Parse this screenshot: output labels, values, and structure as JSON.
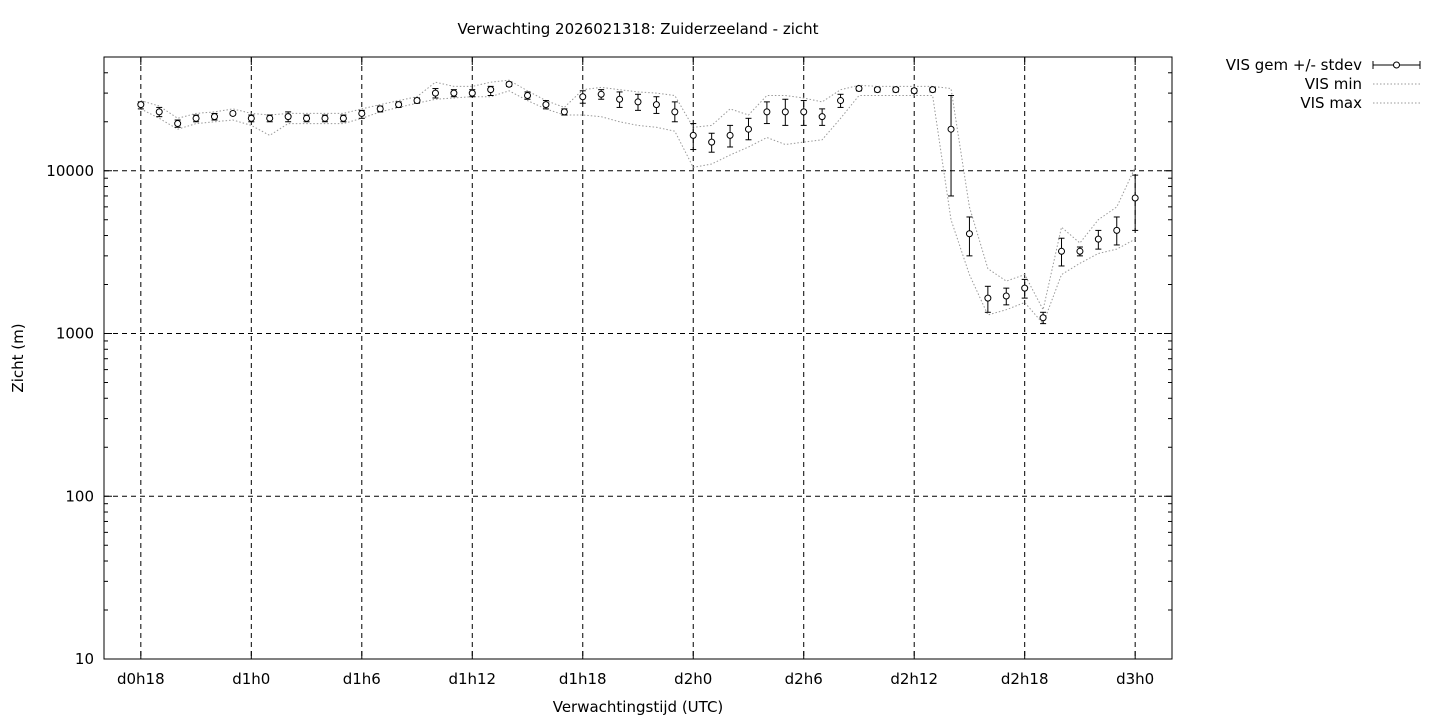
{
  "chart_data": {
    "type": "scatter",
    "title": "Verwachting 2026021318: Zuiderzeeland - zicht",
    "xlabel": "Verwachtingstijd (UTC)",
    "ylabel": "Zicht (m)",
    "y_scale": "log",
    "ylim": [
      10,
      50000
    ],
    "x_unit": "hours since d0h18",
    "xlim": [
      -2,
      56
    ],
    "x_ticks": [
      {
        "x": 0,
        "label": "d0h18"
      },
      {
        "x": 6,
        "label": "d1h0"
      },
      {
        "x": 12,
        "label": "d1h6"
      },
      {
        "x": 18,
        "label": "d1h12"
      },
      {
        "x": 24,
        "label": "d1h18"
      },
      {
        "x": 30,
        "label": "d2h0"
      },
      {
        "x": 36,
        "label": "d2h6"
      },
      {
        "x": 42,
        "label": "d2h12"
      },
      {
        "x": 48,
        "label": "d2h18"
      },
      {
        "x": 54,
        "label": "d3h0"
      }
    ],
    "y_ticks": [
      {
        "y": 10,
        "label": "10"
      },
      {
        "y": 100,
        "label": "100"
      },
      {
        "y": 1000,
        "label": "1000"
      },
      {
        "y": 10000,
        "label": "10000"
      }
    ],
    "grid": true,
    "legend_position": "outside-top-right",
    "series": [
      {
        "name": "VIS gem +/- stdev",
        "style": "points-errorbars",
        "x": [
          0,
          1,
          2,
          3,
          4,
          5,
          6,
          7,
          8,
          9,
          10,
          11,
          12,
          13,
          14,
          15,
          16,
          17,
          18,
          19,
          20,
          21,
          22,
          23,
          24,
          25,
          26,
          27,
          28,
          29,
          30,
          31,
          32,
          33,
          34,
          35,
          36,
          37,
          38,
          39,
          40,
          41,
          42,
          43,
          44,
          45,
          46,
          47,
          48,
          49,
          50,
          51,
          52,
          53,
          54
        ],
        "mean": [
          25500,
          23000,
          19500,
          21000,
          21500,
          22500,
          21000,
          21000,
          21500,
          21000,
          21000,
          21000,
          22500,
          24000,
          25500,
          27000,
          30000,
          30000,
          30000,
          31500,
          34000,
          29000,
          25500,
          23000,
          28500,
          29500,
          27500,
          26500,
          25500,
          23000,
          16500,
          15000,
          16500,
          18000,
          23000,
          23000,
          23000,
          21500,
          27000,
          32000,
          31500,
          31500,
          31000,
          31500,
          18000,
          4100,
          1650,
          1700,
          1900,
          1250,
          3200,
          3200,
          3800,
          4300,
          6800
        ],
        "low": [
          24000,
          21500,
          18500,
          20000,
          20500,
          22000,
          20000,
          20000,
          20000,
          20000,
          20000,
          20000,
          21000,
          23000,
          24500,
          26000,
          28000,
          28500,
          28500,
          29000,
          33000,
          27500,
          24000,
          22000,
          26000,
          27500,
          24500,
          23500,
          22500,
          20000,
          13500,
          13000,
          14000,
          15500,
          19500,
          19000,
          19000,
          19000,
          24500,
          31000,
          30500,
          30500,
          30000,
          30500,
          7000,
          3000,
          1350,
          1500,
          1650,
          1150,
          2600,
          3000,
          3300,
          3500,
          4300
        ],
        "high": [
          26500,
          24500,
          20500,
          22000,
          22500,
          23000,
          22000,
          22000,
          23000,
          22000,
          22000,
          22000,
          23500,
          25000,
          26500,
          28000,
          32000,
          31500,
          31500,
          33000,
          35000,
          30500,
          27000,
          24000,
          31000,
          31500,
          30500,
          29500,
          28500,
          26500,
          19500,
          17000,
          19000,
          21000,
          26500,
          27500,
          27000,
          24000,
          29500,
          33000,
          32500,
          32500,
          32000,
          32500,
          29000,
          5200,
          1950,
          1900,
          2150,
          1350,
          3850,
          3400,
          4300,
          5200,
          9400
        ]
      },
      {
        "name": "VIS min",
        "style": "dotted-line",
        "x": [
          0,
          1,
          2,
          3,
          4,
          5,
          6,
          7,
          8,
          9,
          10,
          11,
          12,
          13,
          14,
          15,
          16,
          17,
          18,
          19,
          20,
          21,
          22,
          23,
          24,
          25,
          26,
          27,
          28,
          29,
          30,
          31,
          32,
          33,
          34,
          35,
          36,
          37,
          38,
          39,
          40,
          41,
          42,
          43,
          44,
          45,
          46,
          47,
          48,
          49,
          50,
          51,
          52,
          53,
          54
        ],
        "values": [
          24000,
          21000,
          18000,
          19500,
          20000,
          20500,
          19000,
          16500,
          19500,
          19500,
          19500,
          19500,
          21000,
          23000,
          24500,
          26000,
          27500,
          28000,
          28500,
          28500,
          31000,
          27000,
          24000,
          22000,
          22000,
          21500,
          20000,
          19000,
          18500,
          17500,
          10500,
          11000,
          12500,
          14000,
          16000,
          14500,
          15000,
          15500,
          21000,
          29000,
          29000,
          29000,
          29000,
          29000,
          5000,
          2300,
          1300,
          1400,
          1550,
          1150,
          2300,
          2700,
          3100,
          3300,
          3800
        ]
      },
      {
        "name": "VIS max",
        "style": "dotted-line",
        "x": [
          0,
          1,
          2,
          3,
          4,
          5,
          6,
          7,
          8,
          9,
          10,
          11,
          12,
          13,
          14,
          15,
          16,
          17,
          18,
          19,
          20,
          21,
          22,
          23,
          24,
          25,
          26,
          27,
          28,
          29,
          30,
          31,
          32,
          33,
          34,
          35,
          36,
          37,
          38,
          39,
          40,
          41,
          42,
          43,
          44,
          45,
          46,
          47,
          48,
          49,
          50,
          51,
          52,
          53,
          54
        ],
        "values": [
          27000,
          25000,
          21000,
          22500,
          23000,
          24000,
          22500,
          22000,
          22500,
          22500,
          22500,
          22500,
          24000,
          25500,
          27000,
          28500,
          35000,
          33000,
          33000,
          35000,
          36000,
          31000,
          27000,
          24500,
          31500,
          32500,
          31500,
          30500,
          30000,
          29000,
          18500,
          19000,
          24000,
          22000,
          29000,
          29000,
          28000,
          26500,
          31500,
          33500,
          33000,
          33000,
          33000,
          33000,
          32000,
          6000,
          2500,
          2100,
          2300,
          1400,
          4500,
          3600,
          5000,
          6000,
          10500
        ]
      }
    ]
  }
}
